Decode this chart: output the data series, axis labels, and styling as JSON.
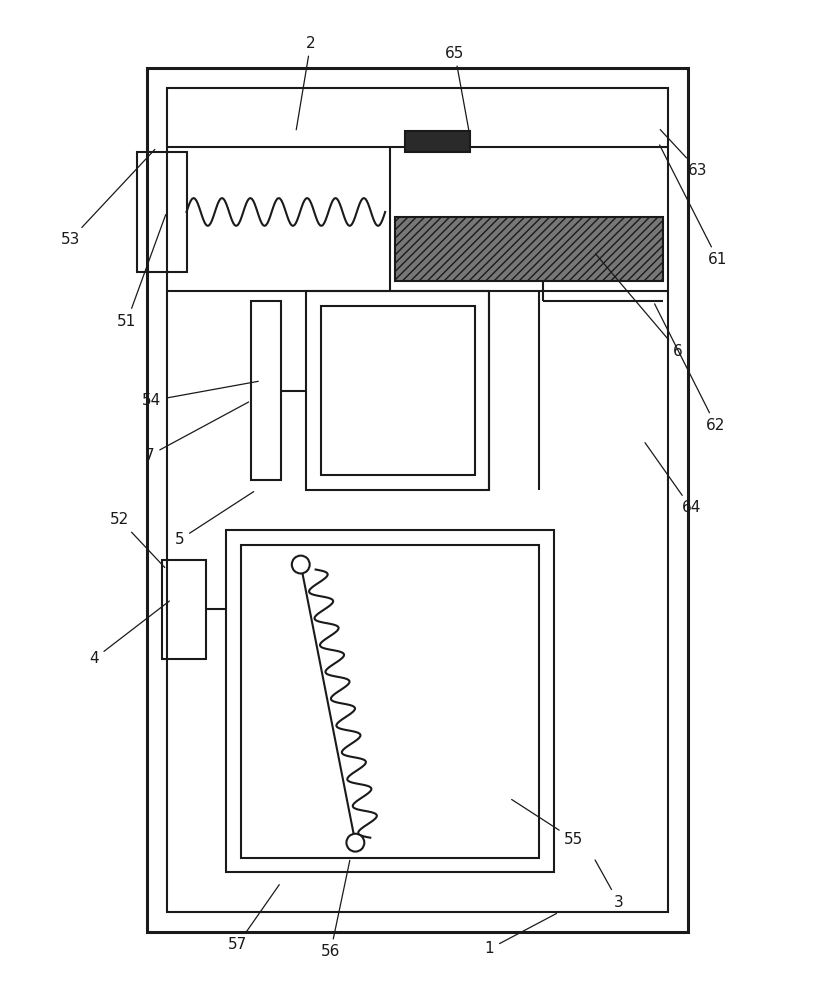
{
  "bg_color": "#ffffff",
  "lc": "#1a1a1a",
  "lw": 1.5,
  "lw_thick": 2.2,
  "fig_w": 8.19,
  "fig_h": 10.0,
  "label_fs": 11
}
